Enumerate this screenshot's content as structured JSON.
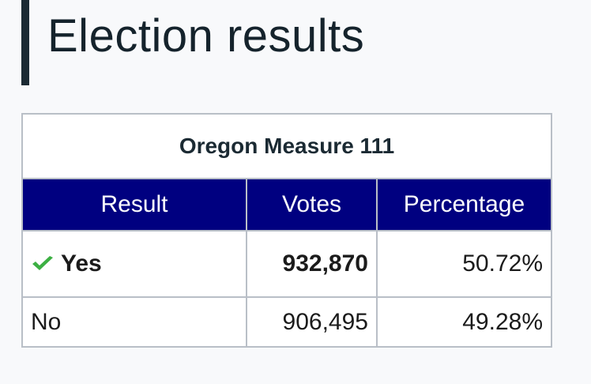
{
  "header": {
    "title": "Election results"
  },
  "table": {
    "caption": "Oregon Measure 111",
    "columns": [
      "Result",
      "Votes",
      "Percentage"
    ],
    "rows": [
      [
        "Yes",
        "932,870",
        "50.72%"
      ],
      [
        "No",
        "906,495",
        "49.28%"
      ]
    ]
  }
}
